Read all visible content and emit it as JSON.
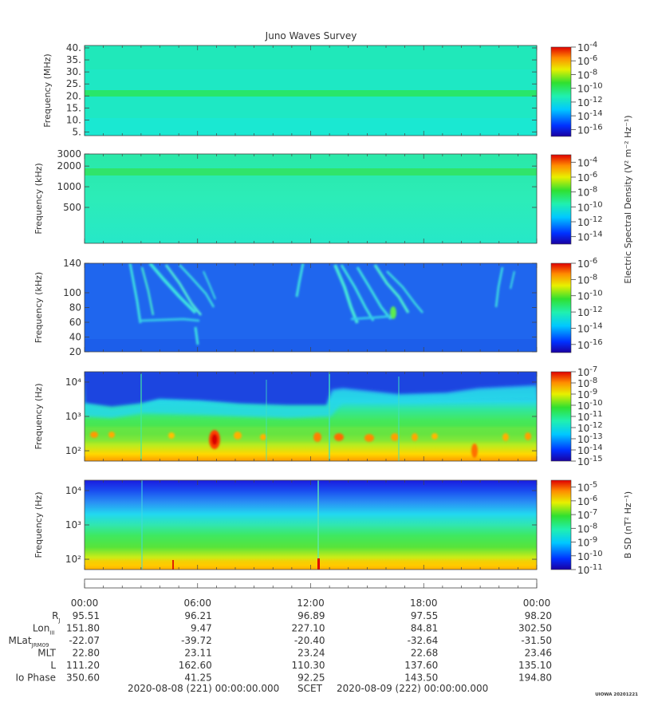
{
  "title": "Juno Waves Survey",
  "stamp": "UIOWA 20201221",
  "colorbar_side_labels": {
    "electric": "Electric Spectral Density (V² m⁻² Hz⁻¹)",
    "magnetic": "B SD (nT² Hz⁻¹)"
  },
  "chart_data": [
    {
      "type": "heatmap",
      "ylabel": "Frequency (MHz)",
      "yticks": [
        "40.",
        "35.",
        "30.",
        "25.",
        "20.",
        "15.",
        "10.",
        "5."
      ],
      "ylim": [
        3.5,
        41
      ],
      "yscale": "linear",
      "colorbar_ticks": [
        "-4",
        "-6",
        "-8",
        "-10",
        "-12",
        "-14",
        "-16"
      ],
      "colorbar_range": [
        -17,
        -4
      ],
      "features": "uniform background ~1e-13 with a constant emission band near 21 MHz (~1e-11)",
      "colors": {
        "background": "#1ee8c4",
        "band": "#28e66a"
      }
    },
    {
      "type": "heatmap",
      "ylabel": "Frequency (kHz)",
      "yticks": [
        "3000",
        "2000",
        "1000",
        "500"
      ],
      "ylim": [
        150,
        3000
      ],
      "yscale": "log",
      "colorbar_ticks": [
        "-4",
        "-6",
        "-8",
        "-10",
        "-12",
        "-14"
      ],
      "colorbar_range": [
        -15,
        -3
      ],
      "features": "uniform background ~1e-11 with a constant band near 1600 kHz (~1e-10)",
      "colors": {
        "background": "#2cecb0",
        "band": "#30e46a"
      }
    },
    {
      "type": "heatmap",
      "ylabel": "Frequency (kHz)",
      "yticks": [
        "140",
        "100",
        "80",
        "60",
        "40",
        "20"
      ],
      "ylim": [
        20,
        140
      ],
      "yscale": "linear",
      "colorbar_ticks": [
        "-6",
        "-8",
        "-10",
        "-12",
        "-14",
        "-16"
      ],
      "colorbar_range": [
        -17,
        -6
      ],
      "features": "background ~1e-15 with drifting arc emissions around 03:00–05:00, 10:30, 14:00–17:00 and 22:30–23:30 UT",
      "colors": {
        "background": "#1f66ee",
        "arc": "#3ee4e0",
        "hot": "#4ee860"
      }
    },
    {
      "type": "heatmap",
      "ylabel": "Frequency (Hz)",
      "yticks": [
        "10⁴",
        "10³",
        "10²"
      ],
      "ylim": [
        50,
        20000
      ],
      "yscale": "log",
      "colorbar_ticks": [
        "-7",
        "-8",
        "-9",
        "-10",
        "-11",
        "-12",
        "-13",
        "-14",
        "-15"
      ],
      "colorbar_range": [
        -15,
        -7
      ],
      "features": "low-frequency intense emission (~1e-9 to 1e-8) below ~2 kHz; boundary rises near 12:30 UT to ~4–6 kHz",
      "colors": {
        "top": "#1a4ee6",
        "mid": "#1ee0e0",
        "low": "#3ee85a",
        "hot": "#ffd800"
      }
    },
    {
      "type": "heatmap",
      "ylabel": "Frequency (Hz)",
      "yticks": [
        "10⁴",
        "10³",
        "10²"
      ],
      "ylim": [
        50,
        20000
      ],
      "yscale": "log",
      "colorbar_ticks": [
        "-5",
        "-6",
        "-7",
        "-8",
        "-9",
        "-10",
        "-11"
      ],
      "colorbar_range": [
        -11,
        -4.5
      ],
      "features": "magnetic spectral density decreasing with frequency; intense below ~150 Hz",
      "colors": {
        "top": "#1a2ee6",
        "mid": "#20e0e8",
        "low": "#40e860",
        "hot": "#ffe000"
      }
    }
  ],
  "x_axis": {
    "times": [
      "00:00",
      "06:00",
      "12:00",
      "18:00",
      "00:00"
    ],
    "rows": [
      {
        "label": "R",
        "sub": "J",
        "values": [
          "95.51",
          "96.21",
          "96.89",
          "97.55",
          "98.20"
        ]
      },
      {
        "label": "Lon",
        "sub": "III",
        "values": [
          "151.80",
          "9.47",
          "227.10",
          "84.81",
          "302.50"
        ]
      },
      {
        "label": "MLat",
        "sub": "JRM09",
        "values": [
          "-22.07",
          "-39.72",
          "-20.40",
          "-32.64",
          "-31.50"
        ]
      },
      {
        "label": "MLT",
        "sub": "",
        "values": [
          "22.80",
          "23.11",
          "23.24",
          "22.68",
          "23.46"
        ]
      },
      {
        "label": "L",
        "sub": "",
        "values": [
          "111.20",
          "162.60",
          "110.30",
          "137.60",
          "135.10"
        ]
      },
      {
        "label": "Io Phase",
        "sub": "",
        "values": [
          "350.60",
          "41.25",
          "92.25",
          "143.50",
          "194.80"
        ]
      }
    ],
    "footer": {
      "start": "2020-08-08 (221) 00:00:00.000",
      "scet": "SCET",
      "end": "2020-08-09 (222) 00:00:00.000"
    }
  }
}
